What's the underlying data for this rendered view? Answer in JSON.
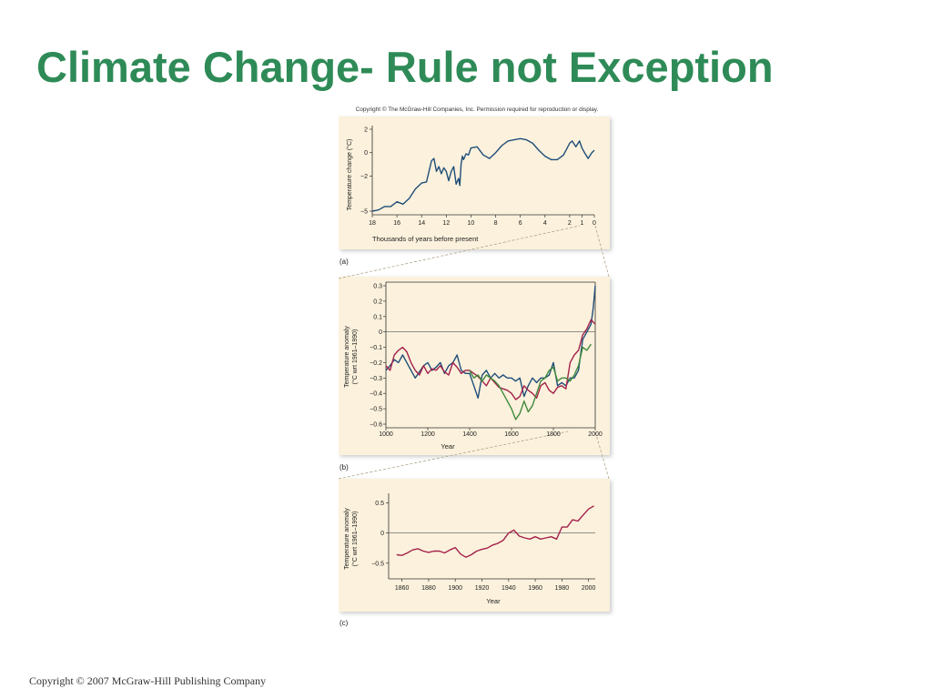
{
  "title": "Climate Change- Rule not Exception",
  "figure_copyright": "Copyright © The McGraw-Hill Companies, Inc. Permission required for reproduction or display.",
  "footer": "Copyright © 2007 McGraw-Hill Publishing Company",
  "colors": {
    "title": "#2e8b57",
    "panel_bg": "#fbf1dc",
    "blue_series": "#1f4e79",
    "red_series": "#a3214a",
    "green_series": "#3f8a3c"
  },
  "chart_data": [
    {
      "type": "line",
      "panel_label": "(a)",
      "xlabel": "Thousands of years before present",
      "ylabel": "Temperature change (°C)",
      "x_reversed": true,
      "xlim": [
        18,
        0
      ],
      "ylim": [
        -5,
        2
      ],
      "x_ticks": [
        18,
        16,
        14,
        12,
        10,
        8,
        6,
        4,
        2,
        1,
        0
      ],
      "y_ticks": [
        2,
        0,
        -2,
        -5
      ],
      "grid": false,
      "series": [
        {
          "color": "blue",
          "x": [
            18,
            17.5,
            17,
            16.5,
            16,
            15.5,
            15,
            14.5,
            14,
            13.6,
            13.2,
            13.0,
            12.8,
            12.6,
            12.4,
            12.2,
            12.0,
            11.8,
            11.6,
            11.4,
            11.2,
            11.0,
            10.9,
            10.8,
            10.7,
            10.6,
            10.4,
            10.2,
            10.0,
            9.5,
            9.0,
            8.5,
            8.0,
            7.5,
            7.0,
            6.5,
            6.0,
            5.5,
            5.0,
            4.5,
            4.0,
            3.5,
            3.0,
            2.5,
            2.0,
            1.8,
            1.5,
            1.2,
            1.0,
            0.8,
            0.5,
            0.2,
            0
          ],
          "y": [
            -5.0,
            -4.9,
            -4.6,
            -4.6,
            -4.2,
            -4.4,
            -3.9,
            -3.1,
            -2.6,
            -2.5,
            -0.7,
            -0.5,
            -1.6,
            -1.2,
            -1.8,
            -1.3,
            -1.6,
            -2.4,
            -1.6,
            -1.2,
            -2.7,
            -2.2,
            -2.8,
            -1.0,
            -0.3,
            -0.6,
            -0.1,
            -0.2,
            0.4,
            0.5,
            -0.2,
            -0.5,
            0.0,
            0.6,
            1.0,
            1.1,
            1.2,
            1.1,
            0.8,
            0.2,
            -0.3,
            -0.6,
            -0.6,
            -0.2,
            0.8,
            1.0,
            0.5,
            1.0,
            0.4,
            0.0,
            -0.5,
            0.0,
            0.2
          ]
        }
      ]
    },
    {
      "type": "line",
      "panel_label": "(b)",
      "xlabel": "Year",
      "ylabel": "Temperature anomaly (°C wrt 1961–1990)",
      "xlim": [
        1000,
        2000
      ],
      "ylim": [
        -0.6,
        0.3
      ],
      "x_ticks": [
        1000,
        1200,
        1400,
        1600,
        1800,
        2000
      ],
      "y_ticks": [
        0.3,
        0.2,
        0.1,
        0,
        -0.1,
        -0.2,
        -0.3,
        -0.4,
        -0.5,
        -0.6
      ],
      "zero_line": true,
      "grid": false,
      "series": [
        {
          "color": "blue",
          "x": [
            1000,
            1020,
            1040,
            1060,
            1080,
            1100,
            1120,
            1140,
            1160,
            1180,
            1200,
            1220,
            1240,
            1260,
            1280,
            1300,
            1320,
            1340,
            1360,
            1380,
            1400,
            1420,
            1440,
            1460,
            1480,
            1500,
            1520,
            1540,
            1560,
            1580,
            1600,
            1620,
            1640,
            1660,
            1680,
            1700,
            1720,
            1740,
            1760,
            1780,
            1800,
            1820,
            1840,
            1860,
            1880,
            1900,
            1920,
            1940,
            1960,
            1980,
            1990,
            2000
          ],
          "y": [
            -0.25,
            -0.22,
            -0.18,
            -0.2,
            -0.15,
            -0.2,
            -0.25,
            -0.3,
            -0.26,
            -0.22,
            -0.2,
            -0.25,
            -0.23,
            -0.2,
            -0.27,
            -0.22,
            -0.2,
            -0.15,
            -0.25,
            -0.27,
            -0.27,
            -0.35,
            -0.43,
            -0.28,
            -0.25,
            -0.3,
            -0.27,
            -0.3,
            -0.28,
            -0.3,
            -0.3,
            -0.32,
            -0.3,
            -0.42,
            -0.35,
            -0.3,
            -0.33,
            -0.3,
            -0.3,
            -0.28,
            -0.2,
            -0.35,
            -0.33,
            -0.35,
            -0.3,
            -0.3,
            -0.25,
            -0.05,
            0.0,
            0.05,
            0.15,
            0.3
          ]
        },
        {
          "color": "red",
          "x": [
            1000,
            1020,
            1040,
            1060,
            1080,
            1100,
            1120,
            1140,
            1160,
            1180,
            1200,
            1220,
            1240,
            1260,
            1280,
            1300,
            1320,
            1340,
            1360,
            1380,
            1400,
            1420,
            1440,
            1460,
            1480,
            1500,
            1520,
            1540,
            1560,
            1580,
            1600,
            1620,
            1640,
            1660,
            1680,
            1700,
            1720,
            1740,
            1760,
            1780,
            1800,
            1820,
            1840,
            1860,
            1880,
            1900,
            1920,
            1940,
            1960,
            1980,
            2000
          ],
          "y": [
            -0.22,
            -0.25,
            -0.15,
            -0.12,
            -0.1,
            -0.13,
            -0.2,
            -0.25,
            -0.28,
            -0.22,
            -0.27,
            -0.24,
            -0.25,
            -0.22,
            -0.26,
            -0.28,
            -0.2,
            -0.23,
            -0.27,
            -0.25,
            -0.25,
            -0.27,
            -0.29,
            -0.32,
            -0.35,
            -0.3,
            -0.33,
            -0.36,
            -0.37,
            -0.38,
            -0.4,
            -0.44,
            -0.42,
            -0.35,
            -0.38,
            -0.4,
            -0.43,
            -0.35,
            -0.33,
            -0.38,
            -0.4,
            -0.36,
            -0.35,
            -0.37,
            -0.2,
            -0.15,
            -0.12,
            -0.02,
            0.02,
            0.08,
            0.05
          ]
        },
        {
          "color": "green",
          "x": [
            1400,
            1420,
            1440,
            1460,
            1480,
            1500,
            1520,
            1540,
            1560,
            1580,
            1600,
            1620,
            1640,
            1660,
            1680,
            1700,
            1720,
            1740,
            1760,
            1780,
            1800,
            1820,
            1840,
            1860,
            1880,
            1900,
            1920,
            1940,
            1960,
            1980
          ],
          "y": [
            -0.25,
            -0.3,
            -0.28,
            -0.32,
            -0.28,
            -0.3,
            -0.32,
            -0.35,
            -0.4,
            -0.45,
            -0.5,
            -0.57,
            -0.53,
            -0.45,
            -0.52,
            -0.48,
            -0.4,
            -0.32,
            -0.3,
            -0.25,
            -0.23,
            -0.32,
            -0.3,
            -0.3,
            -0.32,
            -0.28,
            -0.22,
            -0.1,
            -0.12,
            -0.08
          ]
        }
      ]
    },
    {
      "type": "line",
      "panel_label": "(c)",
      "xlabel": "Year",
      "ylabel": "Temperature anomaly (°C wrt 1961–1990)",
      "xlim": [
        1850,
        2005
      ],
      "ylim": [
        -0.7,
        0.6
      ],
      "x_ticks": [
        1860,
        1880,
        1900,
        1920,
        1940,
        1960,
        1980,
        2000
      ],
      "y_ticks": [
        0.5,
        0,
        -0.5
      ],
      "zero_line": true,
      "grid": false,
      "series": [
        {
          "color": "red",
          "x": [
            1856,
            1860,
            1864,
            1868,
            1872,
            1876,
            1880,
            1884,
            1888,
            1892,
            1896,
            1900,
            1904,
            1908,
            1912,
            1916,
            1920,
            1924,
            1928,
            1932,
            1936,
            1940,
            1944,
            1948,
            1952,
            1956,
            1960,
            1964,
            1968,
            1972,
            1976,
            1980,
            1984,
            1988,
            1992,
            1996,
            2000,
            2004
          ],
          "y": [
            -0.36,
            -0.37,
            -0.33,
            -0.28,
            -0.26,
            -0.3,
            -0.32,
            -0.3,
            -0.3,
            -0.33,
            -0.28,
            -0.24,
            -0.35,
            -0.4,
            -0.36,
            -0.3,
            -0.27,
            -0.25,
            -0.2,
            -0.17,
            -0.12,
            0.0,
            0.05,
            -0.05,
            -0.08,
            -0.1,
            -0.06,
            -0.1,
            -0.08,
            -0.06,
            -0.1,
            0.1,
            0.1,
            0.22,
            0.2,
            0.3,
            0.4,
            0.45
          ]
        }
      ]
    }
  ]
}
